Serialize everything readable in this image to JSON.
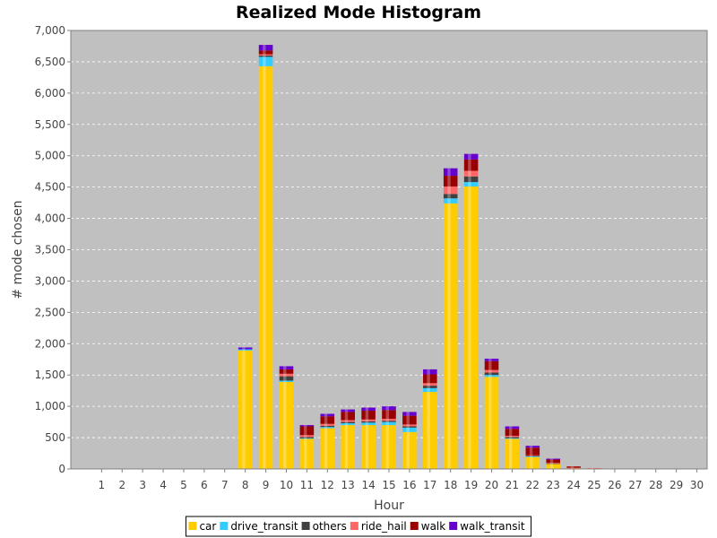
{
  "chart_data": {
    "type": "bar",
    "stacked": true,
    "title": "Realized Mode Histogram",
    "xlabel": "Hour",
    "ylabel": "# mode chosen",
    "ylim": [
      0,
      7000
    ],
    "yticks": [
      0,
      500,
      1000,
      1500,
      2000,
      2500,
      3000,
      3500,
      4000,
      4500,
      5000,
      5500,
      6000,
      6500,
      7000
    ],
    "ytick_labels": [
      "0",
      "500",
      "1,000",
      "1,500",
      "2,000",
      "2,500",
      "3,000",
      "3,500",
      "4,000",
      "4,500",
      "5,000",
      "5,500",
      "6,000",
      "6,500",
      "7,000"
    ],
    "categories": [
      "1",
      "2",
      "3",
      "4",
      "5",
      "6",
      "7",
      "8",
      "9",
      "10",
      "11",
      "12",
      "13",
      "14",
      "15",
      "16",
      "17",
      "18",
      "19",
      "20",
      "21",
      "22",
      "23",
      "24",
      "25",
      "26",
      "27",
      "28",
      "29",
      "30"
    ],
    "grid": true,
    "legend_position": "bottom",
    "plot_background": "#c0c0c0",
    "series": [
      {
        "name": "car",
        "color": "#ffcc00",
        "values": [
          0,
          0,
          0,
          0,
          0,
          0,
          0,
          1890,
          6430,
          1390,
          480,
          650,
          700,
          700,
          700,
          590,
          1230,
          4240,
          4510,
          1470,
          480,
          190,
          80,
          10,
          0,
          0,
          0,
          0,
          0,
          0
        ]
      },
      {
        "name": "drive_transit",
        "color": "#33ccff",
        "values": [
          0,
          0,
          0,
          0,
          0,
          0,
          0,
          20,
          150,
          20,
          10,
          20,
          30,
          40,
          50,
          70,
          60,
          80,
          70,
          30,
          10,
          10,
          0,
          0,
          0,
          0,
          0,
          0,
          0,
          0
        ]
      },
      {
        "name": "others",
        "color": "#404040",
        "values": [
          0,
          0,
          0,
          0,
          0,
          0,
          0,
          0,
          20,
          70,
          20,
          20,
          20,
          20,
          20,
          20,
          40,
          70,
          90,
          40,
          20,
          10,
          10,
          0,
          0,
          0,
          0,
          0,
          0,
          0
        ]
      },
      {
        "name": "ride_hail",
        "color": "#ff6666",
        "values": [
          0,
          0,
          0,
          0,
          0,
          0,
          0,
          0,
          20,
          40,
          30,
          30,
          30,
          30,
          30,
          30,
          40,
          120,
          90,
          40,
          20,
          10,
          10,
          10,
          10,
          0,
          0,
          0,
          0,
          0
        ]
      },
      {
        "name": "walk",
        "color": "#990000",
        "values": [
          0,
          0,
          0,
          0,
          0,
          0,
          0,
          0,
          60,
          70,
          140,
          120,
          130,
          140,
          140,
          140,
          140,
          170,
          180,
          140,
          110,
          120,
          50,
          20,
          0,
          0,
          0,
          0,
          0,
          0
        ]
      },
      {
        "name": "walk_transit",
        "color": "#6600cc",
        "values": [
          0,
          0,
          0,
          0,
          0,
          0,
          0,
          30,
          90,
          50,
          20,
          40,
          40,
          50,
          60,
          60,
          80,
          120,
          90,
          40,
          40,
          30,
          10,
          0,
          0,
          0,
          0,
          0,
          0,
          0
        ]
      }
    ]
  }
}
